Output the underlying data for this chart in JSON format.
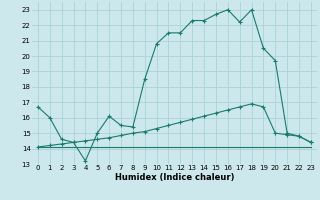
{
  "xlabel": "Humidex (Indice chaleur)",
  "bg_color": "#cce8ec",
  "grid_color": "#aad4d8",
  "line_color": "#1a7a6e",
  "xlim": [
    -0.5,
    23.5
  ],
  "ylim": [
    13,
    23.5
  ],
  "xticks": [
    0,
    1,
    2,
    3,
    4,
    5,
    6,
    7,
    8,
    9,
    10,
    11,
    12,
    13,
    14,
    15,
    16,
    17,
    18,
    19,
    20,
    21,
    22,
    23
  ],
  "yticks": [
    13,
    14,
    15,
    16,
    17,
    18,
    19,
    20,
    21,
    22,
    23
  ],
  "line1_x": [
    0,
    1,
    2,
    3,
    4,
    5,
    6,
    7,
    8,
    9,
    10,
    11,
    12,
    13,
    14,
    15,
    16,
    17,
    18,
    19,
    20,
    21,
    22,
    23
  ],
  "line1_y": [
    16.7,
    16.0,
    14.6,
    14.4,
    13.2,
    15.0,
    16.1,
    15.5,
    15.4,
    18.5,
    20.8,
    21.5,
    21.5,
    22.3,
    22.3,
    22.7,
    23.0,
    22.2,
    23.0,
    20.5,
    19.7,
    15.0,
    14.8,
    14.4
  ],
  "line2_x": [
    0,
    23
  ],
  "line2_y": [
    14.1,
    14.1
  ],
  "line3_x": [
    0,
    1,
    2,
    3,
    4,
    5,
    6,
    7,
    8,
    9,
    10,
    11,
    12,
    13,
    14,
    15,
    16,
    17,
    18,
    19,
    20,
    21,
    22,
    23
  ],
  "line3_y": [
    14.1,
    14.2,
    14.3,
    14.4,
    14.5,
    14.6,
    14.7,
    14.85,
    15.0,
    15.1,
    15.3,
    15.5,
    15.7,
    15.9,
    16.1,
    16.3,
    16.5,
    16.7,
    16.9,
    16.7,
    15.0,
    14.9,
    14.8,
    14.4
  ],
  "xlabel_fontsize": 6,
  "tick_fontsize": 5
}
